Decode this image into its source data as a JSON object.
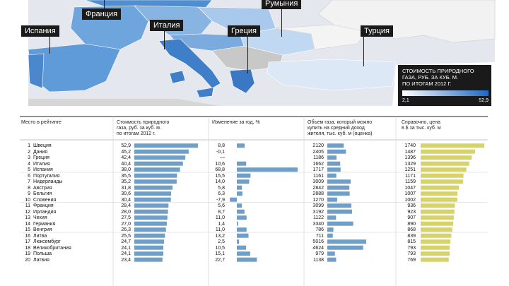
{
  "map": {
    "labels": [
      {
        "key": "france",
        "text": "Франция"
      },
      {
        "key": "spain",
        "text": "Испания"
      },
      {
        "key": "italy",
        "text": "Италия"
      },
      {
        "key": "greece",
        "text": "Греция"
      },
      {
        "key": "romania",
        "text": "Румыния"
      },
      {
        "key": "turkey",
        "text": "Турция"
      }
    ],
    "legend": {
      "title_lines": [
        "Стоимость природного",
        "газа, руб. за куб. м.",
        "по итогам 2012 г."
      ],
      "min": "2,1",
      "max": "52,9",
      "color_low": "#ffffff",
      "color_high": "#1d67c2"
    }
  },
  "chart_data": {
    "type": "table",
    "columns": {
      "rank": {
        "header": [
          "Место в рейтинге"
        ]
      },
      "price_rub": {
        "header": [
          "Стоимость природного",
          "газа, руб. за куб. м.",
          "по итогам 2012 г."
        ],
        "color": "#6f9fc9"
      },
      "change_pct": {
        "header": [
          "Изменение за год, %"
        ],
        "color": "#6f9fc9"
      },
      "volume": {
        "header": [
          "Объем газа, который можно",
          "купить на средний доход",
          "жителя, тыс. куб. м (оценка)"
        ],
        "color": "#6f9fc9"
      },
      "price_usd": {
        "header": [
          "Справочно, цена",
          "в $ за тыс. куб. м"
        ],
        "color": "#d6d36a"
      }
    },
    "rows": [
      {
        "rank": "1",
        "country": "Швеция",
        "price_rub": 52.9,
        "price_rub_label": "52,9",
        "change": 8.8,
        "change_label": "8,8",
        "volume": 2120,
        "usd": 1740
      },
      {
        "rank": "2",
        "country": "Дания",
        "price_rub": 45.2,
        "price_rub_label": "45,2",
        "change": -0.1,
        "change_label": "-0,1",
        "volume": 2405,
        "usd": 1487
      },
      {
        "rank": "3",
        "country": "Греция",
        "price_rub": 42.4,
        "price_rub_label": "42,4",
        "change": null,
        "change_label": "—",
        "volume": 1186,
        "usd": 1396
      },
      {
        "rank": "4",
        "country": "Италия",
        "price_rub": 40.4,
        "price_rub_label": "40,4",
        "change": 10.6,
        "change_label": "10,6",
        "volume": 1662,
        "usd": 1329
      },
      {
        "rank": "5",
        "country": "Испания",
        "price_rub": 38.0,
        "price_rub_label": "38,0",
        "change": 68.8,
        "change_label": "68,8",
        "volume": 1717,
        "usd": 1251
      },
      {
        "rank": "6",
        "country": "Португалия",
        "price_rub": 35.5,
        "price_rub_label": "35,5",
        "change": 15.5,
        "change_label": "15,5",
        "volume": 1161,
        "usd": 1171
      },
      {
        "rank": "7",
        "country": "Нидерланды",
        "price_rub": 35.2,
        "price_rub_label": "35,2",
        "change": 14.0,
        "change_label": "14,0",
        "volume": 3009,
        "usd": 1159
      },
      {
        "rank": "8",
        "country": "Австрия",
        "price_rub": 31.8,
        "price_rub_label": "31,8",
        "change": 5.8,
        "change_label": "5,8",
        "volume": 2842,
        "usd": 1047
      },
      {
        "rank": "9",
        "country": "Бельгия",
        "price_rub": 30.6,
        "price_rub_label": "30,6",
        "change": 6.3,
        "change_label": "6,3",
        "volume": 2888,
        "usd": 1007
      },
      {
        "rank": "10",
        "country": "Словения",
        "price_rub": 30.4,
        "price_rub_label": "30,4",
        "change": -7.9,
        "change_label": "-7,9",
        "volume": 1270,
        "usd": 1002
      },
      {
        "rank": "11",
        "country": "Франция",
        "price_rub": 28.4,
        "price_rub_label": "28,4",
        "change": 5.6,
        "change_label": "5,6",
        "volume": 3099,
        "usd": 936
      },
      {
        "rank": "12",
        "country": "Ирландия",
        "price_rub": 28.0,
        "price_rub_label": "28,0",
        "change": 8.7,
        "change_label": "8,7",
        "volume": 3192,
        "usd": 923
      },
      {
        "rank": "13",
        "country": "Чехия",
        "price_rub": 27.5,
        "price_rub_label": "27,5",
        "change": 11.0,
        "change_label": "11,0",
        "volume": 1122,
        "usd": 907
      },
      {
        "rank": "14",
        "country": "Германия",
        "price_rub": 27.0,
        "price_rub_label": "27,0",
        "change": 1.4,
        "change_label": "1,4",
        "volume": 3340,
        "usd": 890
      },
      {
        "rank": "15",
        "country": "Венгрия",
        "price_rub": 26.3,
        "price_rub_label": "26,3",
        "change": 11.0,
        "change_label": "11,0",
        "volume": 786,
        "usd": 868
      },
      {
        "rank": "16",
        "country": "Литва",
        "price_rub": 25.5,
        "price_rub_label": "25,5",
        "change": 13.2,
        "change_label": "13,2",
        "volume": 711,
        "usd": 839
      },
      {
        "rank": "17",
        "country": "Люксембург",
        "price_rub": 24.7,
        "price_rub_label": "24,7",
        "change": 2.5,
        "change_label": "2,5",
        "volume": 5016,
        "usd": 815
      },
      {
        "rank": "18",
        "country": "Великобритания",
        "price_rub": 24.1,
        "price_rub_label": "24,1",
        "change": 10.5,
        "change_label": "10,5",
        "volume": 4624,
        "usd": 793
      },
      {
        "rank": "19",
        "country": "Польша",
        "price_rub": 24.1,
        "price_rub_label": "24,1",
        "change": 15.1,
        "change_label": "15,1",
        "volume": 979,
        "usd": 793
      },
      {
        "rank": "20",
        "country": "Латвия",
        "price_rub": 23.4,
        "price_rub_label": "23,4",
        "change": 22.7,
        "change_label": "22,7",
        "volume": 1138,
        "usd": 769
      }
    ],
    "axis_max": {
      "price_rub": 52.9,
      "change": 68.8,
      "volume": 5016,
      "usd": 1740
    }
  }
}
